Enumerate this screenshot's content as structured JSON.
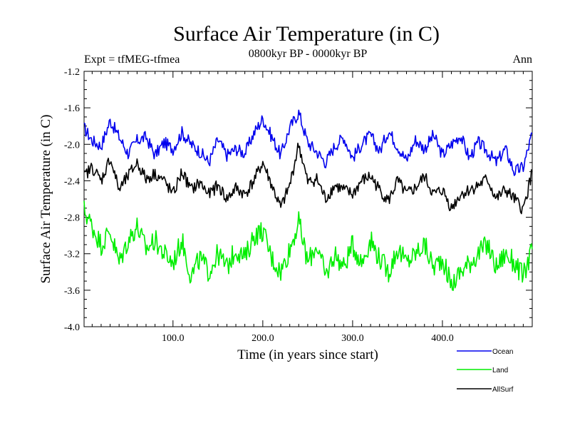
{
  "chart_data": {
    "type": "line",
    "title": "Surface Air Temperature (in C)",
    "subtitle_left": "Expt = tfMEG-tfmea",
    "subtitle_center": "0800kyr BP - 0000kyr BP",
    "subtitle_right": "Ann",
    "xlabel": "Time (in years since start)",
    "ylabel": "Surface Air Temperature (in C)",
    "xlim": [
      1,
      500
    ],
    "ylim": [
      -4.0,
      -1.2
    ],
    "x_ticks": [
      100,
      200,
      300,
      400
    ],
    "x_tick_labels": [
      "100.0",
      "200.0",
      "300.0",
      "400.0"
    ],
    "y_ticks": [
      -1.2,
      -1.6,
      -2.0,
      -2.4,
      -2.8,
      -3.2,
      -3.6,
      -4.0
    ],
    "y_tick_labels": [
      "-1.2",
      "-1.6",
      "-2.0",
      "-2.4",
      "-2.8",
      "-3.2",
      "-3.6",
      "-4.0"
    ],
    "grid": false,
    "legend_position": "bottom-right",
    "series": [
      {
        "name": "Ocean",
        "color": "#0000ee",
        "x": [
          1,
          10,
          20,
          30,
          40,
          50,
          60,
          70,
          80,
          90,
          100,
          110,
          120,
          130,
          140,
          150,
          160,
          170,
          180,
          190,
          200,
          210,
          220,
          230,
          240,
          250,
          260,
          270,
          280,
          290,
          300,
          310,
          320,
          330,
          340,
          350,
          360,
          370,
          380,
          390,
          400,
          410,
          420,
          430,
          440,
          450,
          460,
          470,
          480,
          490,
          500
        ],
        "values": [
          -1.82,
          -1.96,
          -2.02,
          -1.74,
          -1.92,
          -2.1,
          -1.96,
          -1.92,
          -2.12,
          -1.98,
          -2.05,
          -1.87,
          -2.0,
          -2.08,
          -2.2,
          -1.95,
          -2.12,
          -2.05,
          -2.1,
          -1.88,
          -1.72,
          -1.92,
          -2.12,
          -1.82,
          -1.65,
          -1.98,
          -2.08,
          -2.2,
          -2.02,
          -1.92,
          -2.15,
          -2.0,
          -1.9,
          -2.08,
          -1.85,
          -2.02,
          -2.18,
          -1.95,
          -2.05,
          -1.9,
          -2.12,
          -2.0,
          -1.9,
          -2.15,
          -1.98,
          -2.08,
          -2.2,
          -2.05,
          -2.3,
          -2.25,
          -1.88
        ]
      },
      {
        "name": "Land",
        "color": "#00ee00",
        "x": [
          1,
          10,
          20,
          30,
          40,
          50,
          60,
          70,
          80,
          90,
          100,
          110,
          120,
          130,
          140,
          150,
          160,
          170,
          180,
          190,
          200,
          210,
          220,
          230,
          240,
          250,
          260,
          270,
          280,
          290,
          300,
          310,
          320,
          330,
          340,
          350,
          360,
          370,
          380,
          390,
          400,
          410,
          420,
          430,
          440,
          450,
          460,
          470,
          480,
          490,
          500
        ],
        "values": [
          -2.72,
          -2.9,
          -3.1,
          -2.95,
          -3.3,
          -3.05,
          -2.9,
          -3.15,
          -3.05,
          -3.2,
          -3.3,
          -3.05,
          -3.45,
          -3.25,
          -3.4,
          -3.2,
          -3.35,
          -3.15,
          -3.25,
          -3.0,
          -2.95,
          -3.25,
          -3.4,
          -3.15,
          -2.85,
          -3.3,
          -3.1,
          -3.45,
          -3.2,
          -3.35,
          -3.1,
          -3.3,
          -3.05,
          -3.25,
          -3.4,
          -3.15,
          -3.3,
          -3.2,
          -3.1,
          -3.35,
          -3.25,
          -3.55,
          -3.4,
          -3.3,
          -3.2,
          -3.1,
          -3.35,
          -3.2,
          -3.3,
          -3.45,
          -3.15
        ]
      },
      {
        "name": "AllSurf",
        "color": "#000000",
        "x": [
          1,
          10,
          20,
          30,
          40,
          50,
          60,
          70,
          80,
          90,
          100,
          110,
          120,
          130,
          140,
          150,
          160,
          170,
          180,
          190,
          200,
          210,
          220,
          230,
          240,
          250,
          260,
          270,
          280,
          290,
          300,
          310,
          320,
          330,
          340,
          350,
          360,
          370,
          380,
          390,
          400,
          410,
          420,
          430,
          440,
          450,
          460,
          470,
          480,
          490,
          500
        ],
        "values": [
          -2.35,
          -2.25,
          -2.4,
          -2.15,
          -2.5,
          -2.35,
          -2.2,
          -2.38,
          -2.32,
          -2.4,
          -2.55,
          -2.3,
          -2.5,
          -2.42,
          -2.55,
          -2.45,
          -2.6,
          -2.48,
          -2.55,
          -2.4,
          -2.2,
          -2.45,
          -2.7,
          -2.45,
          -2.0,
          -2.42,
          -2.38,
          -2.6,
          -2.45,
          -2.5,
          -2.55,
          -2.4,
          -2.35,
          -2.5,
          -2.62,
          -2.4,
          -2.55,
          -2.48,
          -2.35,
          -2.55,
          -2.5,
          -2.7,
          -2.55,
          -2.5,
          -2.45,
          -2.38,
          -2.6,
          -2.5,
          -2.6,
          -2.72,
          -2.3
        ]
      }
    ]
  }
}
